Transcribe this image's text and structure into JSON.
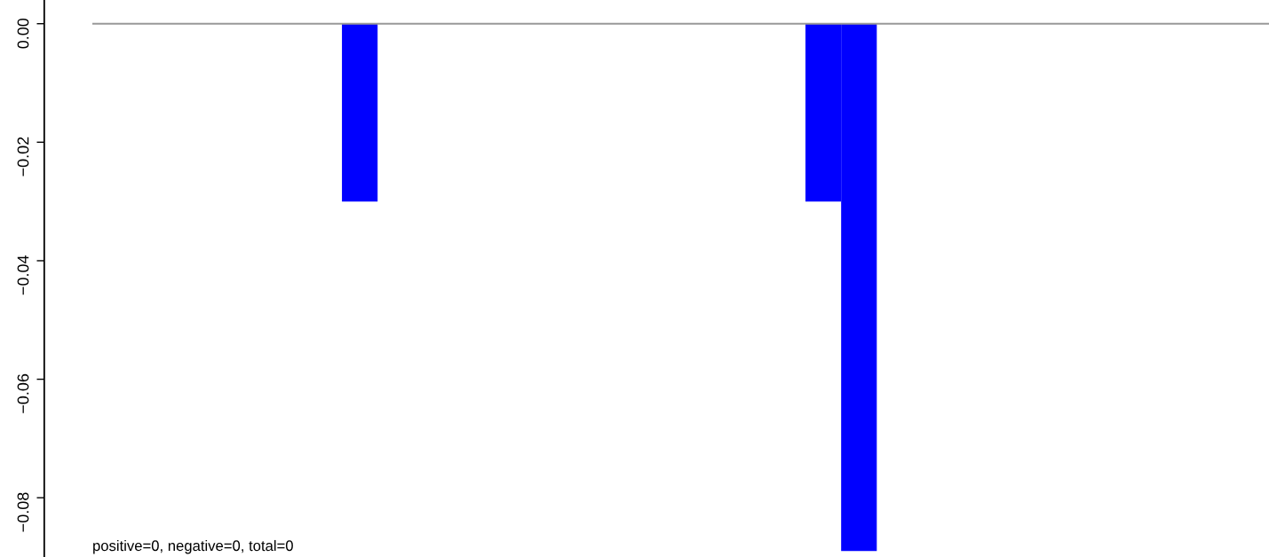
{
  "chart_data": {
    "type": "bar",
    "categories": [
      null,
      null,
      null,
      null,
      null,
      null,
      null,
      null,
      null,
      null,
      null,
      null,
      null,
      null,
      null,
      null,
      null,
      null,
      null,
      null,
      null,
      null,
      null,
      null,
      null,
      null,
      null,
      null,
      null,
      null,
      null,
      null,
      null
    ],
    "values": [
      0,
      0,
      0,
      0,
      0,
      0,
      0,
      -0.03,
      0,
      0,
      0,
      0,
      0,
      0,
      0,
      0,
      0,
      0,
      0,
      0,
      -0.03,
      -0.089,
      0,
      0,
      0,
      0,
      0,
      0,
      0,
      0,
      0,
      0,
      0
    ],
    "color": "#0000ff",
    "ylim": [
      -0.09,
      0.004
    ],
    "yticks": [
      {
        "value": 0,
        "label": "0.00"
      },
      {
        "value": -0.02,
        "label": "−0.02"
      },
      {
        "value": -0.04,
        "label": "−0.04"
      },
      {
        "value": -0.06,
        "label": "−0.06"
      },
      {
        "value": -0.08,
        "label": "−0.08"
      }
    ],
    "ref_lines": [
      {
        "axis": "y",
        "value": 0,
        "color": "#999999"
      }
    ],
    "annotations": [
      "positive=0, negative=0, total=0"
    ],
    "tick_labels": "y",
    "grid": false,
    "legend": false
  }
}
